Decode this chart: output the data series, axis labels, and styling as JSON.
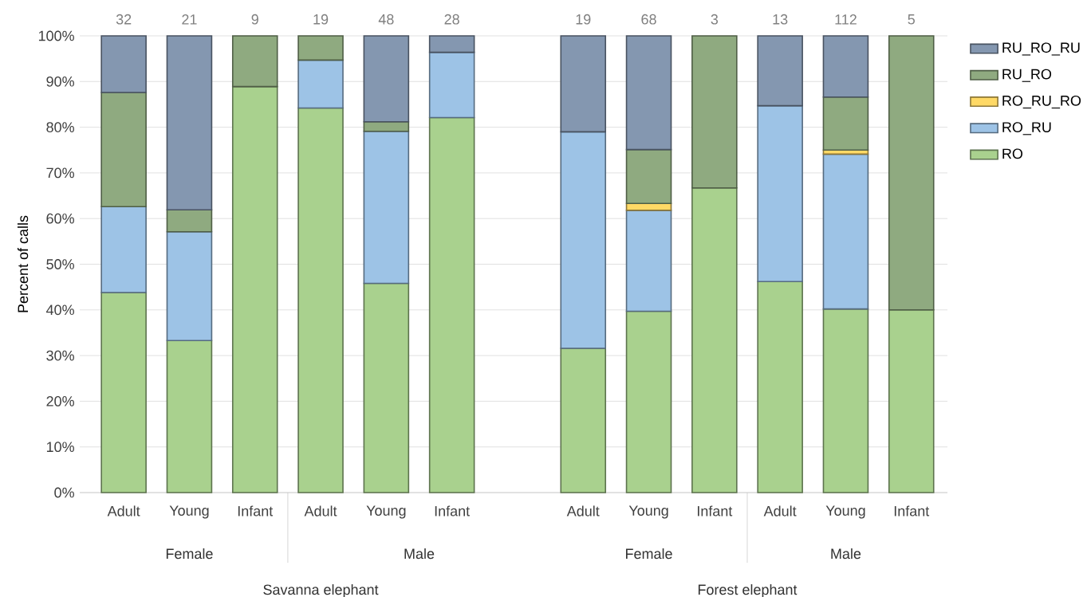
{
  "chart_data": {
    "type": "bar",
    "stacked": true,
    "ylabel": "Percent of calls",
    "categories": [
      "Adult",
      "Young",
      "Infant",
      "Adult",
      "Young",
      "Infant",
      null,
      "Adult",
      "Young",
      "Infant",
      "Adult",
      "Young",
      "Infant"
    ],
    "series": [
      {
        "name": "RO",
        "color": "#a9d18e",
        "values": [
          43.8,
          33.3,
          88.9,
          84.2,
          45.8,
          82.1,
          null,
          31.6,
          39.7,
          66.7,
          46.2,
          40.2,
          40.0
        ]
      },
      {
        "name": "RO_RU",
        "color": "#9dc3e6",
        "values": [
          18.8,
          23.8,
          0,
          10.5,
          33.3,
          14.3,
          null,
          47.4,
          22.1,
          0,
          38.5,
          33.9,
          0
        ]
      },
      {
        "name": "RO_RU_RO",
        "color": "#ffd966",
        "values": [
          0,
          0,
          0,
          0,
          0,
          0,
          null,
          0,
          1.5,
          0,
          0,
          0.9,
          0
        ]
      },
      {
        "name": "RU_RO",
        "color": "#8faa80",
        "values": [
          25.0,
          4.8,
          11.1,
          5.3,
          2.1,
          0,
          null,
          0,
          11.8,
          33.3,
          0,
          11.6,
          60.0
        ]
      },
      {
        "name": "RU_RO_RU",
        "color": "#8497b0",
        "values": [
          12.4,
          38.1,
          0,
          0,
          18.8,
          3.6,
          null,
          21.0,
          24.9,
          0,
          15.3,
          13.4,
          0
        ]
      }
    ],
    "ylim": [
      0,
      100
    ],
    "yticks": [
      {
        "value": 0,
        "label": "0%"
      },
      {
        "value": 10,
        "label": "10%"
      },
      {
        "value": 20,
        "label": "20%"
      },
      {
        "value": 30,
        "label": "30%"
      },
      {
        "value": 40,
        "label": "40%"
      },
      {
        "value": 50,
        "label": "50%"
      },
      {
        "value": 60,
        "label": "60%"
      },
      {
        "value": 70,
        "label": "70%"
      },
      {
        "value": 80,
        "label": "80%"
      },
      {
        "value": 90,
        "label": "90%"
      },
      {
        "value": 100,
        "label": "100%"
      }
    ],
    "grid": "y",
    "legend": "right",
    "annotations": [
      "32",
      "21",
      "9",
      "19",
      "48",
      "28",
      "19",
      "68",
      "3",
      "13",
      "112",
      "5",
      "Female",
      "Male",
      "Female",
      "Male",
      "Savanna elephant",
      "Forest elephant"
    ]
  }
}
